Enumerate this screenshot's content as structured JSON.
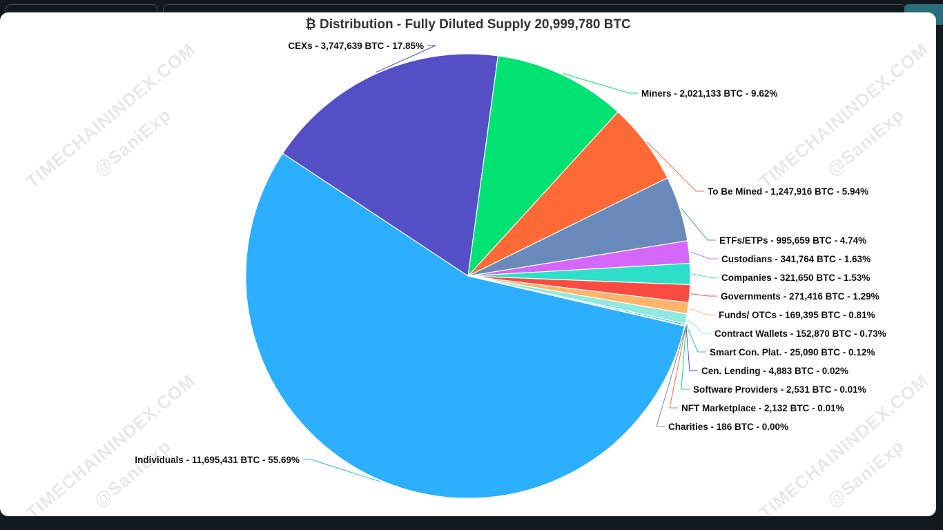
{
  "chart_data": {
    "type": "pie",
    "title": "₿ Distribution - Fully Diluted Supply 20,999,780 BTC",
    "slices": [
      {
        "name": "Individuals",
        "btc": 11695431,
        "percent": 55.69,
        "label": "Individuals - 11,695,431 BTC - 55.69%",
        "color": "#2caffe"
      },
      {
        "name": "CEXs",
        "btc": 3747639,
        "percent": 17.85,
        "label": "CEXs - 3,747,639 BTC - 17.85%",
        "color": "#544fc5"
      },
      {
        "name": "Miners",
        "btc": 2021133,
        "percent": 9.62,
        "label": "Miners - 2,021,133 BTC - 9.62%",
        "color": "#00e272"
      },
      {
        "name": "To Be Mined",
        "btc": 1247916,
        "percent": 5.94,
        "label": "To Be Mined - 1,247,916 BTC - 5.94%",
        "color": "#fe6a35"
      },
      {
        "name": "ETFs/ETPs",
        "btc": 995659,
        "percent": 4.74,
        "label": "ETFs/ETPs - 995,659 BTC - 4.74%",
        "color": "#6b8abc"
      },
      {
        "name": "Custodians",
        "btc": 341764,
        "percent": 1.63,
        "label": "Custodians - 341,764 BTC - 1.63%",
        "color": "#d568fb"
      },
      {
        "name": "Companies",
        "btc": 321650,
        "percent": 1.53,
        "label": "Companies - 321,650 BTC - 1.53%",
        "color": "#2ee0ca"
      },
      {
        "name": "Governments",
        "btc": 271416,
        "percent": 1.29,
        "label": "Governments - 271,416 BTC - 1.29%",
        "color": "#fa4b42"
      },
      {
        "name": "Funds/ OTCs",
        "btc": 169395,
        "percent": 0.81,
        "label": "Funds/ OTCs - 169,395 BTC - 0.81%",
        "color": "#feb56a"
      },
      {
        "name": "Contract Wallets",
        "btc": 152870,
        "percent": 0.73,
        "label": "Contract Wallets - 152,870 BTC - 0.73%",
        "color": "#91e8e1"
      },
      {
        "name": "Smart Con. Plat.",
        "btc": 25090,
        "percent": 0.12,
        "label": "Smart Con. Plat. - 25,090 BTC - 0.12%",
        "color": "#2caffe"
      },
      {
        "name": "Cen. Lending",
        "btc": 4883,
        "percent": 0.02,
        "label": "Cen. Lending - 4,883 BTC - 0.02%",
        "color": "#544fc5"
      },
      {
        "name": "Software Providers",
        "btc": 2531,
        "percent": 0.01,
        "label": "Software Providers - 2,531 BTC - 0.01%",
        "color": "#00e272"
      },
      {
        "name": "NFT Marketplace",
        "btc": 2132,
        "percent": 0.01,
        "label": "NFT Marketplace - 2,132 BTC - 0.01%",
        "color": "#fe6a35"
      },
      {
        "name": "Charities",
        "btc": 186,
        "percent": 0.0,
        "label": "Charities - 186 BTC - 0.00%",
        "color": "#6b8abc"
      }
    ]
  },
  "watermarks": {
    "site": "TIMECHAININDEX.COM",
    "handle": "@SaniExp"
  }
}
